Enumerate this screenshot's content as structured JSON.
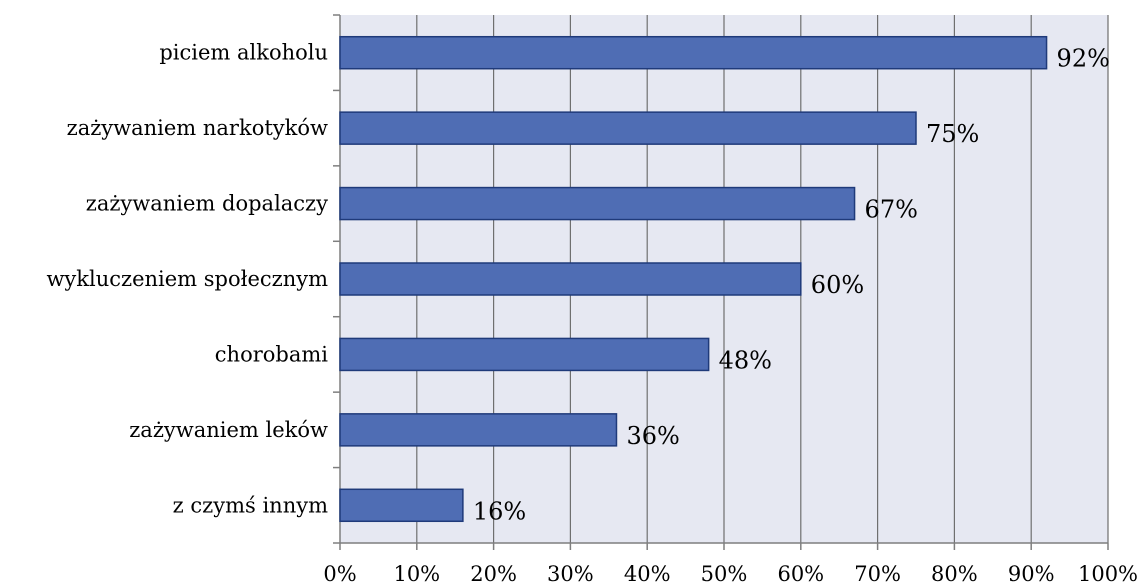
{
  "chart_data": {
    "type": "bar",
    "orientation": "horizontal",
    "categories": [
      "piciem alkoholu",
      "zażywaniem narkotyków",
      "zażywaniem dopalaczy",
      "wykluczeniem społecznym",
      "chorobami",
      "zażywaniem leków",
      "z czymś innym"
    ],
    "values": [
      92,
      75,
      67,
      60,
      48,
      36,
      16
    ],
    "value_labels": [
      "92%",
      "75%",
      "67%",
      "60%",
      "48%",
      "36%",
      "16%"
    ],
    "title": "",
    "xlabel": "",
    "ylabel": "",
    "xlim": [
      0,
      100
    ],
    "x_ticks": [
      "0%",
      "10%",
      "20%",
      "30%",
      "40%",
      "50%",
      "60%",
      "70%",
      "80%",
      "90%",
      "100%"
    ],
    "grid": "vertical",
    "legend": "none",
    "colors": {
      "bar_fill": "#4f6db4",
      "bar_stroke": "#1f3a7a",
      "plot_background": "#e6e8f2",
      "grid": "#6f6f6f",
      "axis": "#7f7f7f"
    }
  }
}
